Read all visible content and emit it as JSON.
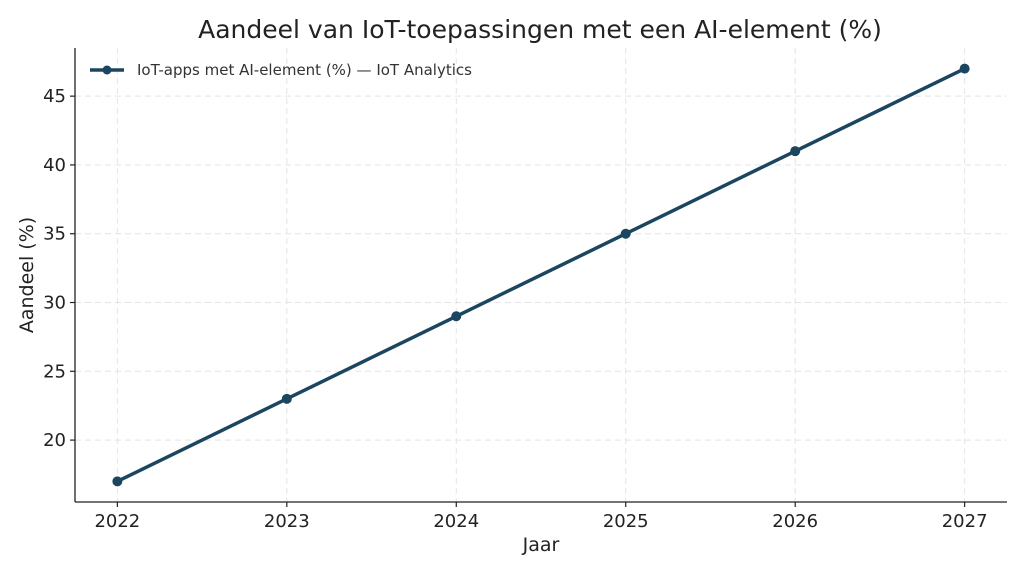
{
  "chart_data": {
    "type": "line",
    "title": "Aandeel van IoT-toepassingen met een AI-element (%)",
    "xlabel": "Jaar",
    "ylabel": "Aandeel (%)",
    "x": [
      2022,
      2023,
      2024,
      2025,
      2026,
      2027
    ],
    "x_ticks": [
      "2022",
      "2023",
      "2024",
      "2025",
      "2026",
      "2027"
    ],
    "y_ticks": [
      20,
      25,
      30,
      35,
      40,
      45
    ],
    "ylim": [
      15.5,
      48.5
    ],
    "xlim": [
      2021.75,
      2027.25
    ],
    "grid": true,
    "legend_position": "top-left",
    "series": [
      {
        "name": "IoT-apps met AI-element (%) — IoT Analytics",
        "values": [
          17,
          23,
          29,
          35,
          41,
          47
        ],
        "color": "#1c4660"
      }
    ]
  }
}
